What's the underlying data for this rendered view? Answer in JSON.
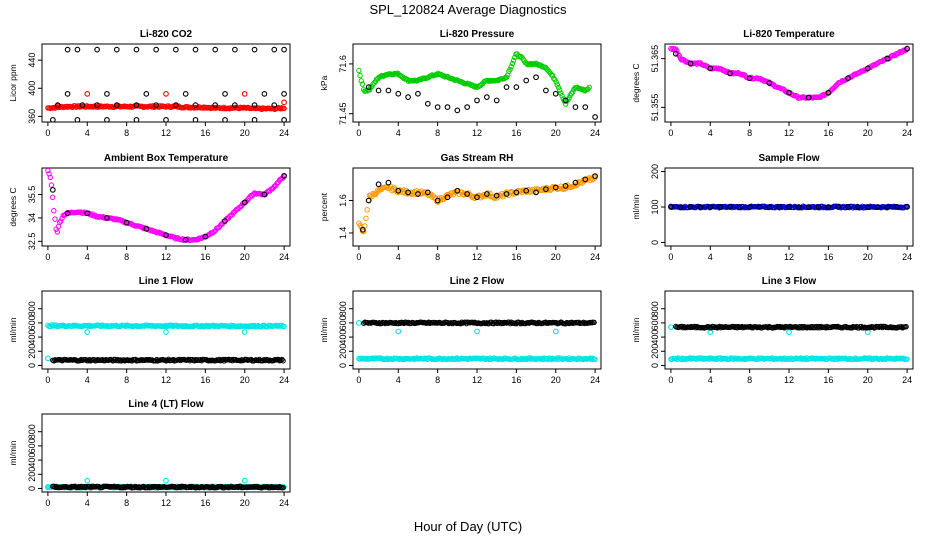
{
  "main_title": "SPL_120824  Average Diagnostics",
  "x_axis_label": "Hour of Day (UTC)",
  "chart_data": [
    {
      "id": "co2",
      "type": "scatter",
      "title": "Li-820 CO2",
      "ylabel": "Licor ppm",
      "xlim": [
        -0.6,
        24.6
      ],
      "ylim": [
        352,
        463
      ],
      "xticks": [
        0,
        4,
        8,
        12,
        16,
        20,
        24
      ],
      "yticks": [
        360,
        400,
        440
      ],
      "series": [
        {
          "color": "#ff0000",
          "marker": "circle",
          "dense": true,
          "x": [
            0,
            1,
            2,
            3,
            4,
            5,
            6,
            7,
            8,
            9,
            10,
            11,
            12,
            13,
            14,
            15,
            16,
            17,
            18,
            19,
            20,
            21,
            22,
            23,
            24
          ],
          "y": [
            372,
            373,
            374,
            374,
            374,
            374,
            374,
            374,
            374,
            374,
            374,
            374,
            374,
            374,
            373,
            373,
            373,
            372,
            372,
            372,
            372,
            371,
            371,
            371,
            372
          ]
        },
        {
          "color": "#ff0000",
          "marker": "circle",
          "x": [
            1,
            4,
            12,
            20,
            24
          ],
          "y": [
            375,
            392,
            392,
            392,
            380
          ]
        },
        {
          "color": "#000000",
          "marker": "circle",
          "x": [
            2,
            3,
            5,
            7,
            9,
            11,
            13,
            15,
            17,
            19,
            21,
            23,
            24
          ],
          "y": [
            455,
            455,
            455,
            455,
            455,
            455,
            455,
            455,
            455,
            455,
            455,
            455,
            455
          ]
        },
        {
          "color": "#000000",
          "marker": "circle",
          "x": [
            2,
            6,
            10,
            14,
            18,
            22,
            24
          ],
          "y": [
            392,
            392,
            392,
            392,
            392,
            392,
            392
          ]
        },
        {
          "color": "#000000",
          "marker": "circle",
          "x": [
            1,
            3.5,
            5,
            7,
            9,
            11,
            13,
            15,
            17,
            19,
            21,
            23
          ],
          "y": [
            376,
            376,
            376,
            376,
            376,
            376,
            376,
            376,
            376,
            376,
            376,
            376
          ]
        },
        {
          "color": "#000000",
          "marker": "circle",
          "x": [
            0.5,
            3,
            6,
            9,
            12,
            15,
            18,
            21,
            24
          ],
          "y": [
            355,
            355,
            355,
            355,
            355,
            355,
            355,
            355,
            355
          ]
        }
      ]
    },
    {
      "id": "pressure",
      "type": "scatter",
      "title": "Li-820 Pressure",
      "ylabel": "kPa",
      "xlim": [
        -0.6,
        24.6
      ],
      "ylim": [
        71.425,
        71.66
      ],
      "xticks": [
        0,
        4,
        8,
        12,
        16,
        20,
        24
      ],
      "yticks": [
        71.45,
        71.6
      ],
      "series": [
        {
          "color": "#00cc00",
          "marker": "circle",
          "dense": true,
          "x": [
            0,
            0.5,
            1,
            2,
            3,
            4,
            5,
            6,
            7,
            8,
            9,
            10,
            11,
            12,
            13,
            14,
            15,
            16,
            16.5,
            17,
            18,
            19,
            20,
            21,
            22,
            23,
            23.5
          ],
          "y": [
            71.58,
            71.52,
            71.52,
            71.56,
            71.57,
            71.57,
            71.55,
            71.55,
            71.56,
            71.57,
            71.56,
            71.55,
            71.54,
            71.53,
            71.55,
            71.55,
            71.56,
            71.63,
            71.62,
            71.6,
            71.6,
            71.59,
            71.55,
            71.48,
            71.53,
            71.52,
            71.53
          ]
        },
        {
          "color": "#000000",
          "marker": "circle",
          "x": [
            1,
            2,
            3,
            4,
            5,
            6,
            7,
            8,
            9,
            10,
            11,
            12,
            13,
            14,
            15,
            16,
            17,
            18,
            19,
            20,
            21,
            22,
            23,
            24
          ],
          "y": [
            71.53,
            71.52,
            71.52,
            71.51,
            71.5,
            71.51,
            71.48,
            71.47,
            71.47,
            71.46,
            71.47,
            71.49,
            71.5,
            71.49,
            71.53,
            71.53,
            71.55,
            71.56,
            71.52,
            71.51,
            71.49,
            71.47,
            71.47,
            71.44
          ]
        }
      ]
    },
    {
      "id": "li820temp",
      "type": "scatter",
      "title": "Li-820 Temperature",
      "ylabel": "degrees C",
      "xlim": [
        -0.6,
        24.6
      ],
      "ylim": [
        51.352,
        51.368
      ],
      "xticks": [
        0,
        4,
        8,
        12,
        16,
        20,
        24
      ],
      "yticks": [
        51.355,
        51.365
      ],
      "series": [
        {
          "color": "#ff00ff",
          "marker": "circle",
          "dense": true,
          "x": [
            0,
            0.5,
            1,
            2,
            3,
            4,
            5,
            6,
            7,
            8,
            9,
            10,
            11,
            12,
            13,
            14,
            15,
            16,
            17,
            18,
            19,
            20,
            21,
            22,
            23,
            24
          ],
          "y": [
            51.367,
            51.367,
            51.365,
            51.364,
            51.364,
            51.363,
            51.363,
            51.362,
            51.362,
            51.361,
            51.361,
            51.36,
            51.359,
            51.358,
            51.357,
            51.357,
            51.357,
            51.358,
            51.36,
            51.361,
            51.362,
            51.363,
            51.364,
            51.365,
            51.366,
            51.367
          ]
        },
        {
          "color": "#000000",
          "marker": "circle",
          "x": [
            0.5,
            2,
            4,
            6,
            8,
            10,
            12,
            14,
            16,
            18,
            20,
            22,
            24
          ],
          "y": [
            51.366,
            51.364,
            51.363,
            51.362,
            51.361,
            51.36,
            51.358,
            51.357,
            51.358,
            51.361,
            51.363,
            51.365,
            51.367
          ]
        }
      ]
    },
    {
      "id": "ambienttemp",
      "type": "scatter",
      "title": "Ambient Box Temperature",
      "ylabel": "degrees C",
      "xlim": [
        -0.6,
        24.6
      ],
      "ylim": [
        32.2,
        37.2
      ],
      "xticks": [
        0,
        4,
        8,
        12,
        16,
        20,
        24
      ],
      "yticks": [
        32.5,
        34,
        35.5
      ],
      "series": [
        {
          "color": "#ff00ff",
          "marker": "circle",
          "dense": true,
          "x": [
            0,
            0.3,
            0.6,
            0.9,
            1.2,
            1.6,
            2,
            3,
            4,
            5,
            6,
            7,
            8,
            9,
            10,
            11,
            12,
            13,
            14,
            15,
            16,
            17,
            18,
            19,
            20,
            21,
            22,
            23,
            24
          ],
          "y": [
            37.0,
            36.5,
            34.5,
            33.0,
            33.7,
            34.2,
            34.3,
            34.4,
            34.3,
            34.1,
            34.0,
            33.9,
            33.7,
            33.5,
            33.3,
            33.1,
            32.9,
            32.7,
            32.6,
            32.6,
            32.8,
            33.2,
            33.8,
            34.4,
            35.0,
            35.6,
            35.5,
            36.0,
            36.7
          ]
        },
        {
          "color": "#000000",
          "marker": "circle",
          "x": [
            0.5,
            2,
            4,
            6,
            8,
            10,
            12,
            14,
            16,
            18,
            20,
            22,
            24
          ],
          "y": [
            35.8,
            34.3,
            34.3,
            34.0,
            33.7,
            33.3,
            32.9,
            32.6,
            32.8,
            33.8,
            35.0,
            35.5,
            36.7
          ]
        }
      ]
    },
    {
      "id": "rh",
      "type": "scatter",
      "title": "Gas Stream RH",
      "ylabel": "percent",
      "xlim": [
        -0.6,
        24.6
      ],
      "ylim": [
        1.32,
        1.8
      ],
      "xticks": [
        0,
        4,
        8,
        12,
        16,
        20,
        24
      ],
      "yticks": [
        1.4,
        1.6
      ],
      "series": [
        {
          "color": "#ff9900",
          "marker": "circle",
          "dense": true,
          "spread": 0.05,
          "x": [
            0,
            0.5,
            1,
            2,
            3,
            4,
            5,
            6,
            7,
            8,
            9,
            10,
            11,
            12,
            13,
            14,
            15,
            16,
            17,
            18,
            19,
            20,
            21,
            22,
            23,
            24
          ],
          "y": [
            1.45,
            1.4,
            1.62,
            1.66,
            1.68,
            1.66,
            1.65,
            1.65,
            1.64,
            1.6,
            1.63,
            1.65,
            1.64,
            1.62,
            1.64,
            1.62,
            1.64,
            1.65,
            1.66,
            1.66,
            1.67,
            1.68,
            1.68,
            1.7,
            1.72,
            1.74
          ]
        },
        {
          "color": "#000000",
          "marker": "circle",
          "x": [
            0.4,
            1,
            2,
            3,
            4,
            5,
            6,
            7,
            8,
            9,
            10,
            11,
            12,
            13,
            14,
            15,
            16,
            17,
            18,
            19,
            20,
            21,
            22,
            23,
            24
          ],
          "y": [
            1.42,
            1.6,
            1.7,
            1.71,
            1.66,
            1.65,
            1.64,
            1.65,
            1.6,
            1.62,
            1.66,
            1.64,
            1.62,
            1.64,
            1.63,
            1.64,
            1.65,
            1.66,
            1.65,
            1.67,
            1.68,
            1.69,
            1.71,
            1.73,
            1.75
          ]
        }
      ]
    },
    {
      "id": "sampleflow",
      "type": "scatter",
      "title": "Sample Flow",
      "ylabel": "ml/min",
      "xlim": [
        -0.6,
        24.6
      ],
      "ylim": [
        -10,
        210
      ],
      "xticks": [
        0,
        4,
        8,
        12,
        16,
        20,
        24
      ],
      "yticks": [
        0,
        100,
        200
      ],
      "series": [
        {
          "color": "#0000cc",
          "marker": "circle",
          "dense": true,
          "x": [
            0,
            24
          ],
          "y": [
            100,
            100
          ]
        },
        {
          "color": "#000000",
          "marker": "circle",
          "x": [
            0,
            1,
            2,
            3,
            4,
            5,
            6,
            7,
            8,
            9,
            10,
            11,
            12,
            13,
            14,
            15,
            16,
            17,
            18,
            19,
            20,
            21,
            22,
            23,
            24
          ],
          "y": [
            100,
            100,
            100,
            100,
            100,
            100,
            100,
            100,
            100,
            100,
            100,
            100,
            100,
            100,
            100,
            100,
            100,
            100,
            100,
            100,
            100,
            100,
            100,
            100,
            100
          ]
        }
      ]
    },
    {
      "id": "line1",
      "type": "scatter",
      "title": "Line 1 Flow",
      "ylabel": "ml/min",
      "xlim": [
        -0.6,
        24.6
      ],
      "ylim": [
        -50,
        1050
      ],
      "xticks": [
        0,
        4,
        8,
        12,
        16,
        20,
        24
      ],
      "yticks": [
        0,
        200,
        400,
        600,
        800
      ],
      "series": [
        {
          "color": "#00e5e5",
          "marker": "circle",
          "dense": true,
          "x": [
            0,
            24
          ],
          "y": [
            560,
            555
          ]
        },
        {
          "color": "#00e5e5",
          "marker": "circle",
          "x": [
            0,
            4,
            12,
            20
          ],
          "y": [
            100,
            470,
            470,
            470
          ]
        },
        {
          "color": "#000000",
          "marker": "circle",
          "dense": true,
          "x": [
            0.5,
            24
          ],
          "y": [
            75,
            75
          ]
        }
      ]
    },
    {
      "id": "line2",
      "type": "scatter",
      "title": "Line 2 Flow",
      "ylabel": "ml/min",
      "xlim": [
        -0.6,
        24.6
      ],
      "ylim": [
        -50,
        1050
      ],
      "xticks": [
        0,
        4,
        8,
        12,
        16,
        20,
        24
      ],
      "yticks": [
        0,
        200,
        400,
        600,
        800
      ],
      "series": [
        {
          "color": "#00e5e5",
          "marker": "circle",
          "dense": true,
          "x": [
            0,
            24
          ],
          "y": [
            95,
            95
          ]
        },
        {
          "color": "#00e5e5",
          "marker": "circle",
          "x": [
            0,
            4,
            12,
            20
          ],
          "y": [
            600,
            480,
            480,
            480
          ]
        },
        {
          "color": "#000000",
          "marker": "circle",
          "dense": true,
          "x": [
            0.5,
            24
          ],
          "y": [
            600,
            600
          ]
        }
      ]
    },
    {
      "id": "line3",
      "type": "scatter",
      "title": "Line 3 Flow",
      "ylabel": "ml/min",
      "xlim": [
        -0.6,
        24.6
      ],
      "ylim": [
        -50,
        1050
      ],
      "xticks": [
        0,
        4,
        8,
        12,
        16,
        20,
        24
      ],
      "yticks": [
        0,
        200,
        400,
        600,
        800
      ],
      "series": [
        {
          "color": "#00e5e5",
          "marker": "circle",
          "dense": true,
          "x": [
            0,
            24
          ],
          "y": [
            95,
            95
          ]
        },
        {
          "color": "#00e5e5",
          "marker": "circle",
          "x": [
            0,
            4,
            12,
            20
          ],
          "y": [
            540,
            470,
            470,
            470
          ]
        },
        {
          "color": "#000000",
          "marker": "circle",
          "dense": true,
          "x": [
            0.5,
            24
          ],
          "y": [
            540,
            540
          ]
        }
      ]
    },
    {
      "id": "line4",
      "type": "scatter",
      "title": "Line 4 (LT) Flow",
      "ylabel": "ml/min",
      "xlim": [
        -0.6,
        24.6
      ],
      "ylim": [
        -50,
        1050
      ],
      "xticks": [
        0,
        4,
        8,
        12,
        16,
        20,
        24
      ],
      "yticks": [
        0,
        200,
        400,
        600,
        800
      ],
      "series": [
        {
          "color": "#00e5e5",
          "marker": "circle",
          "dense": true,
          "x": [
            0,
            24
          ],
          "y": [
            20,
            20
          ]
        },
        {
          "color": "#00e5e5",
          "marker": "circle",
          "x": [
            0,
            4,
            12,
            20
          ],
          "y": [
            20,
            110,
            110,
            110
          ]
        },
        {
          "color": "#000000",
          "marker": "circle",
          "dense": true,
          "x": [
            0.5,
            24
          ],
          "y": [
            20,
            20
          ]
        }
      ]
    }
  ]
}
